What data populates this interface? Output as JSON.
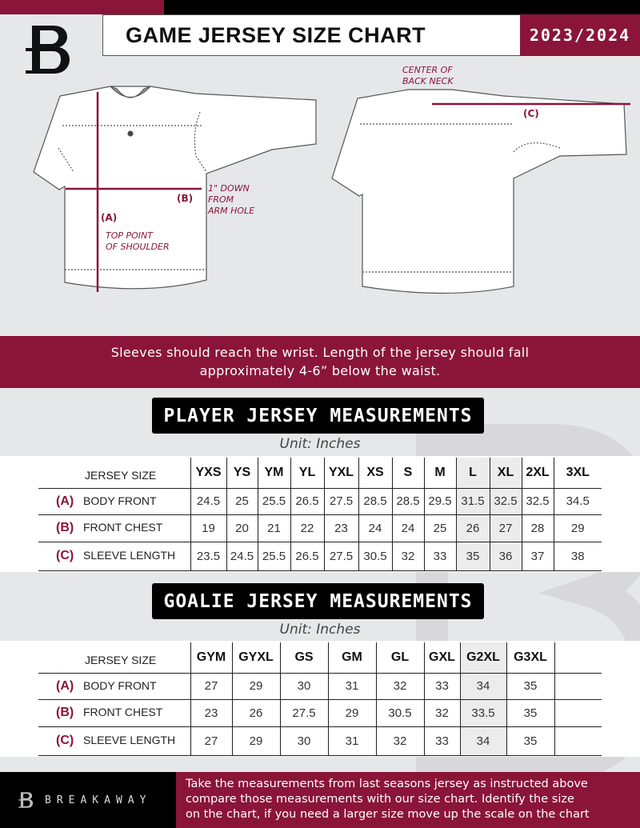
{
  "header": {
    "title": "GAME JERSEY SIZE CHART",
    "season": "2023/2024"
  },
  "diagram": {
    "center_back_neck": [
      "CENTER OF",
      "BACK NECK"
    ],
    "label_a": "(A)",
    "label_b": "(B)",
    "label_c": "(C)",
    "down_note": [
      "1\" DOWN",
      "FROM",
      "ARM HOLE"
    ],
    "shoulder_note": [
      "TOP POINT",
      "OF SHOULDER"
    ]
  },
  "note": {
    "lines": [
      "Sleeves should reach the wrist. Length of the jersey should fall",
      "approximately 4-6” below the waist."
    ]
  },
  "player": {
    "title": "PLAYER JERSEY MEASUREMENTS",
    "unit": "Unit: Inches",
    "size_header": "JERSEY SIZE",
    "sizes": [
      "YXS",
      "YS",
      "YM",
      "YL",
      "YXL",
      "XS",
      "S",
      "M",
      "L",
      "XL",
      "2XL",
      "3XL"
    ],
    "rows": [
      {
        "code": "(A)",
        "label": "BODY FRONT",
        "values": [
          "24.5",
          "25",
          "25.5",
          "26.5",
          "27.5",
          "28.5",
          "28.5",
          "29.5",
          "31.5",
          "32.5",
          "32.5",
          "34.5"
        ]
      },
      {
        "code": "(B)",
        "label": "FRONT CHEST",
        "values": [
          "19",
          "20",
          "21",
          "22",
          "23",
          "24",
          "24",
          "25",
          "26",
          "27",
          "28",
          "29"
        ]
      },
      {
        "code": "(C)",
        "label": "SLEEVE LENGTH",
        "values": [
          "23.5",
          "24.5",
          "25.5",
          "26.5",
          "27.5",
          "30.5",
          "32",
          "33",
          "35",
          "36",
          "37",
          "38"
        ]
      }
    ]
  },
  "goalie": {
    "title": "GOALIE JERSEY MEASUREMENTS",
    "unit": "Unit: Inches",
    "size_header": "JERSEY SIZE",
    "sizes": [
      "GYM",
      "GYXL",
      "GS",
      "GM",
      "GL",
      "GXL",
      "G2XL",
      "G3XL",
      ""
    ],
    "rows": [
      {
        "code": "(A)",
        "label": "BODY FRONT",
        "values": [
          "27",
          "29",
          "30",
          "31",
          "32",
          "33",
          "34",
          "35",
          ""
        ]
      },
      {
        "code": "(B)",
        "label": "FRONT CHEST",
        "values": [
          "23",
          "26",
          "27.5",
          "29",
          "30.5",
          "32",
          "33.5",
          "35",
          ""
        ]
      },
      {
        "code": "(C)",
        "label": "SLEEVE LENGTH",
        "values": [
          "27",
          "29",
          "30",
          "31",
          "32",
          "33",
          "34",
          "35",
          ""
        ]
      }
    ]
  },
  "footer": {
    "brand": "BREAKAWAY",
    "lines": [
      "Take the measurements from last seasons jersey as instructed above",
      "compare those measurements  with our size chart. Identify the size",
      "on the chart, if you need a larger size move up the scale on the chart"
    ]
  },
  "colors": {
    "accent": "#8a1538",
    "dark": "#000000",
    "background": "#e6e7e9"
  }
}
